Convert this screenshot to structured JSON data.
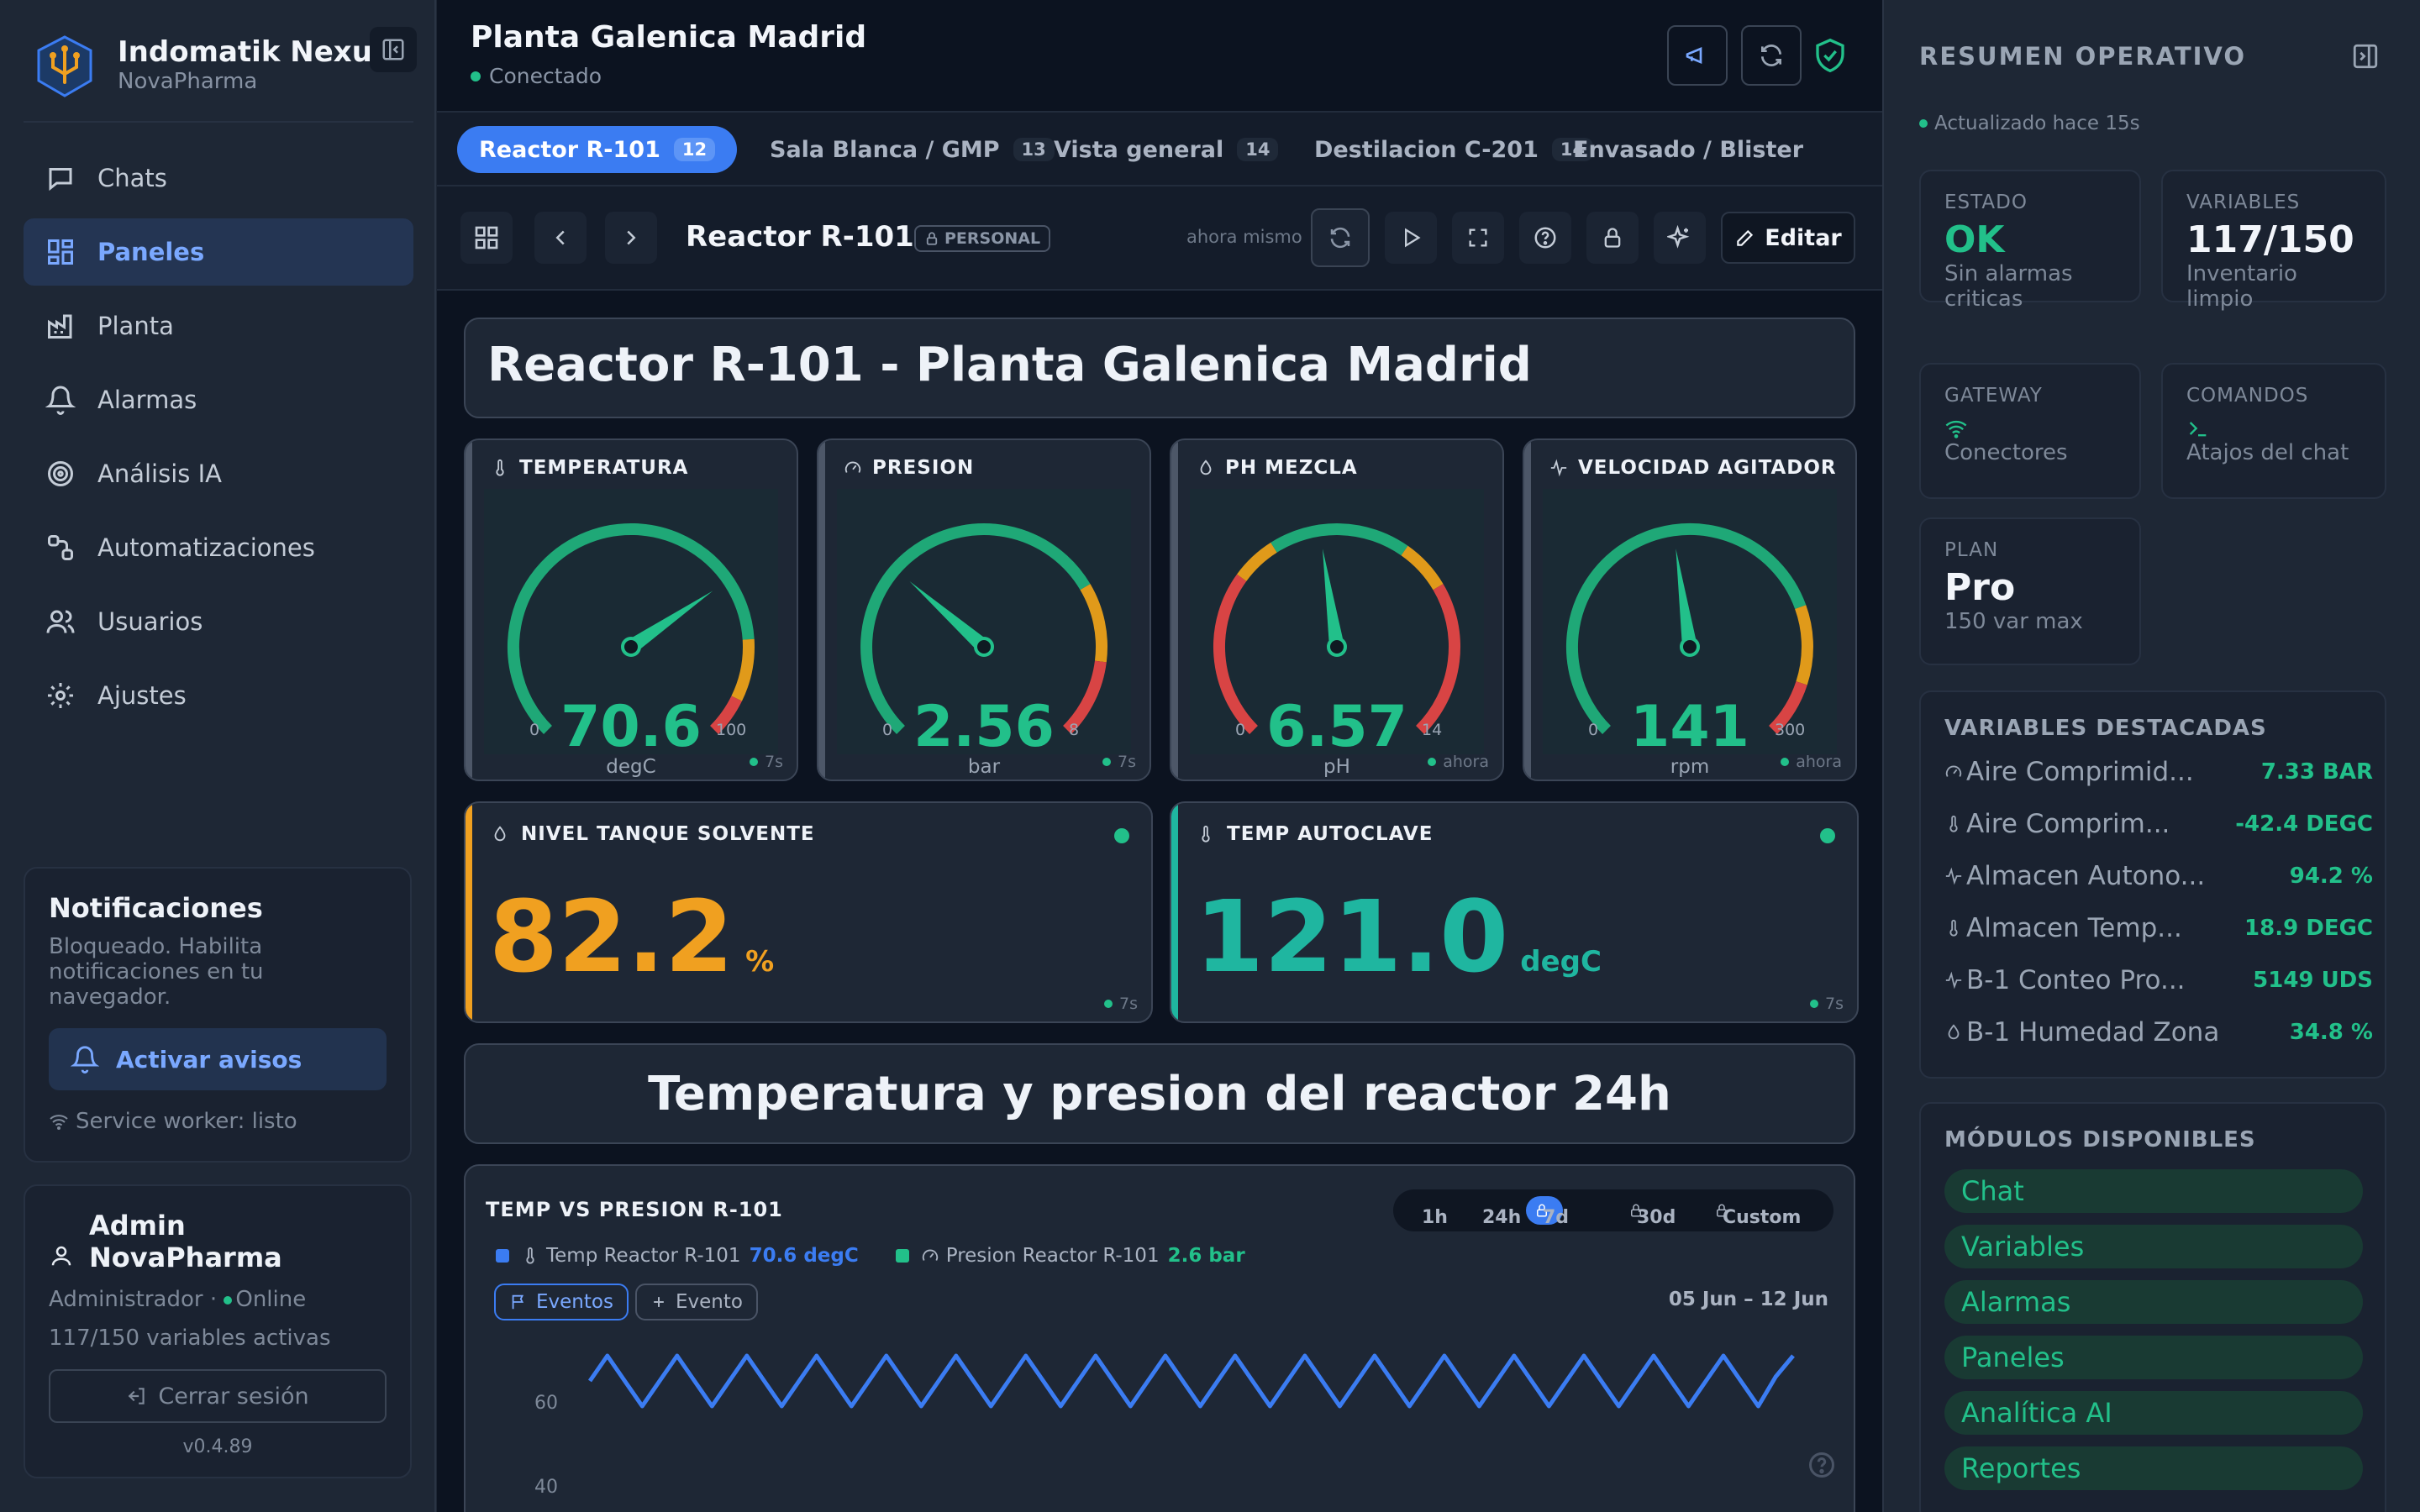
{
  "brand": {
    "name": "Indomatik Nexus",
    "org": "NovaPharma"
  },
  "nav": [
    {
      "label": "Chats",
      "icon": "chat-icon",
      "active": false
    },
    {
      "label": "Paneles",
      "icon": "dashboard-icon",
      "active": true
    },
    {
      "label": "Planta",
      "icon": "factory-icon",
      "active": false
    },
    {
      "label": "Alarmas",
      "icon": "bell-icon",
      "active": false
    },
    {
      "label": "Análisis IA",
      "icon": "ai-target-icon",
      "active": false
    },
    {
      "label": "Automatizaciones",
      "icon": "automation-icon",
      "active": false
    },
    {
      "label": "Usuarios",
      "icon": "users-icon",
      "active": false
    },
    {
      "label": "Ajustes",
      "icon": "gear-icon",
      "active": false
    }
  ],
  "notifications": {
    "title": "Notificaciones",
    "text": "Bloqueado. Habilita notificaciones en tu navegador.",
    "button": "Activar avisos",
    "service_worker": "Service worker: listo"
  },
  "user": {
    "name": "Admin NovaPharma",
    "role": "Administrador",
    "presence": "Online",
    "vars": "117/150 variables activas",
    "logout": "Cerrar sesión",
    "version": "v0.4.89"
  },
  "header": {
    "title": "Planta Galenica Madrid",
    "status": "Conectado"
  },
  "tabs": [
    {
      "label": "Reactor R-101",
      "count": "12",
      "active": true
    },
    {
      "label": "Sala Blanca / GMP",
      "count": "13",
      "active": false
    },
    {
      "label": "Vista general",
      "count": "14",
      "active": false
    },
    {
      "label": "Destilacion C-201",
      "count": "14",
      "active": false
    },
    {
      "label": "Envasado / Blister",
      "count": "",
      "active": false
    }
  ],
  "toolbar": {
    "title": "Reactor R-101",
    "badge": "PERSONAL",
    "time": "ahora mismo",
    "edit": "Editar"
  },
  "dashboard": {
    "title": "Reactor R-101 - Planta Galenica Madrid",
    "section_title": "Temperatura y presion del reactor 24h"
  },
  "gauges": [
    {
      "label": "TEMPERATURA",
      "icon": "thermometer-icon",
      "value": 70.6,
      "display": "70.6",
      "unit": "degC",
      "min": 0,
      "max": 100,
      "min_label": "0",
      "max_label": "100",
      "age": "7s",
      "color": "#22c08a",
      "bands": [
        [
          0,
          0.82,
          "#1fa877"
        ],
        [
          0.82,
          0.93,
          "#e09a1a"
        ],
        [
          0.93,
          1,
          "#d84444"
        ]
      ]
    },
    {
      "label": "PRESION",
      "icon": "gauge-icon",
      "value": 2.56,
      "display": "2.56",
      "unit": "bar",
      "min": 0,
      "max": 8,
      "min_label": "0",
      "max_label": "8",
      "age": "7s",
      "color": "#22c08a",
      "bands": [
        [
          0,
          0.72,
          "#1fa877"
        ],
        [
          0.72,
          0.86,
          "#e09a1a"
        ],
        [
          0.86,
          1,
          "#d84444"
        ]
      ]
    },
    {
      "label": "PH MEZCLA",
      "icon": "drop-icon",
      "value": 6.57,
      "display": "6.57",
      "unit": "pH",
      "min": 0,
      "max": 14,
      "min_label": "0",
      "max_label": "14",
      "age": "ahora",
      "color": "#22c08a",
      "bands": [
        [
          0,
          0.3,
          "#d84444"
        ],
        [
          0.3,
          0.38,
          "#e09a1a"
        ],
        [
          0.38,
          0.63,
          "#1fa877"
        ],
        [
          0.63,
          0.72,
          "#e09a1a"
        ],
        [
          0.72,
          1,
          "#d84444"
        ]
      ]
    },
    {
      "label": "VELOCIDAD AGITADOR",
      "icon": "pulse-icon",
      "value": 141,
      "display": "141",
      "unit": "rpm",
      "min": 0,
      "max": 300,
      "min_label": "0",
      "max_label": "300",
      "age": "ahora",
      "color": "#22c08a",
      "bands": [
        [
          0,
          0.76,
          "#1fa877"
        ],
        [
          0.76,
          0.9,
          "#e09a1a"
        ],
        [
          0.9,
          1,
          "#d84444"
        ]
      ]
    }
  ],
  "kpis": [
    {
      "label": "NIVEL TANQUE SOLVENTE",
      "icon": "drop-icon",
      "value": "82.2",
      "unit": "%",
      "color": "#f0a020",
      "age": "7s"
    },
    {
      "label": "TEMP AUTOCLAVE",
      "icon": "thermometer-icon",
      "value": "121.0",
      "unit": "degC",
      "color": "#1fb6a0",
      "age": "7s"
    }
  ],
  "chart": {
    "title": "TEMP VS PRESION R-101",
    "ranges": [
      {
        "label": "1h",
        "locked": false,
        "active": false
      },
      {
        "label": "24h",
        "locked": false,
        "active": false
      },
      {
        "label": "7d",
        "locked": true,
        "active": true
      },
      {
        "label": "30d",
        "locked": true,
        "active": false
      },
      {
        "label": "Custom",
        "locked": true,
        "active": false
      }
    ],
    "legend": [
      {
        "name": "Temp Reactor R-101",
        "value": "70.6 degC",
        "color": "#3b7cf2",
        "icon": "thermometer-icon"
      },
      {
        "name": "Presion Reactor R-101",
        "value": "2.6 bar",
        "color": "#22c08a",
        "icon": "gauge-icon"
      }
    ],
    "events_btn": "Eventos",
    "add_event_btn": "Evento",
    "date_range": "05 Jun – 12 Jun"
  },
  "chart_data": {
    "type": "line",
    "series": [
      {
        "name": "Temp Reactor R-101",
        "values": [
          65.0,
          71.0,
          65.0,
          59.0,
          65.0,
          71.0,
          65.0,
          59.0,
          65.0,
          71.0,
          65.0,
          59.0,
          65.0,
          71.0,
          65.0,
          59.0,
          65.0,
          71.0,
          65.0,
          59.0,
          65.0,
          71.0,
          65.0,
          59.0,
          65.0,
          71.0,
          65.0,
          59.0,
          65.0,
          71.0,
          65.0,
          59.0,
          65.0,
          71.0,
          65.0,
          59.0,
          65.0,
          71.0,
          65.0,
          59.0,
          65.0,
          71.0,
          65.0,
          59.0,
          65.0,
          71.0,
          65.0,
          59.0,
          65.0,
          71.0,
          65.0,
          59.0,
          65.0,
          71.0,
          65.0,
          59.0,
          65.0,
          71.0,
          65.0,
          59.0,
          65.0,
          71.0,
          65.0,
          59.0,
          65.0,
          71.0,
          65.0,
          59.0,
          66.0,
          71.0
        ]
      }
    ],
    "y_ticks": [
      "60",
      "40"
    ],
    "ylim": [
      35,
      75
    ],
    "x_range": "05 Jun – 12 Jun"
  },
  "right": {
    "title": "RESUMEN OPERATIVO",
    "updated": "Actualizado hace 15s",
    "cards": [
      {
        "label": "ESTADO",
        "value": "OK",
        "sub": "Sin alarmas criticas",
        "color": "#22c08a"
      },
      {
        "label": "VARIABLES",
        "value": "117/150",
        "sub": "Inventario limpio",
        "color": "#f2f5fa"
      },
      {
        "label": "GATEWAY",
        "sub": "Conectores",
        "icon": "wifi-icon"
      },
      {
        "label": "COMANDOS",
        "sub": "Atajos del chat",
        "icon": "terminal-icon"
      },
      {
        "label": "PLAN",
        "value": "Pro",
        "sub": "150 var max",
        "color": "#f2f5fa"
      }
    ],
    "featured_title": "VARIABLES DESTACADAS",
    "featured": [
      {
        "name": "Aire Comprimid...",
        "value": "7.33 BAR",
        "icon": "gauge-icon"
      },
      {
        "name": "Aire Comprim...",
        "value": "-42.4 DEGC",
        "icon": "thermometer-icon"
      },
      {
        "name": "Almacen Autono...",
        "value": "94.2 %",
        "icon": "pulse-icon"
      },
      {
        "name": "Almacen Temp...",
        "value": "18.9 DEGC",
        "icon": "thermometer-icon"
      },
      {
        "name": "B-1 Conteo Pro...",
        "value": "5149 UDS",
        "icon": "pulse-icon"
      },
      {
        "name": "B-1 Humedad Zona",
        "value": "34.8 %",
        "icon": "drop-icon"
      }
    ],
    "modules_title": "MÓDULOS DISPONIBLES",
    "modules": [
      "Chat",
      "Variables",
      "Alarmas",
      "Paneles",
      "Analítica AI",
      "Reportes"
    ]
  }
}
